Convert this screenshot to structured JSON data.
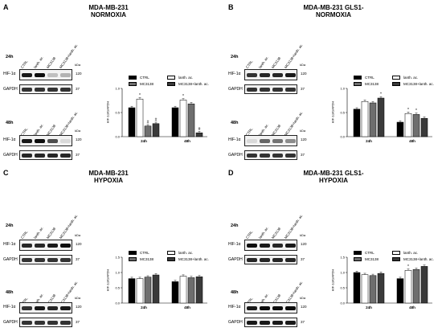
{
  "panels": [
    {
      "letter": "A",
      "title_line1": "MDA-MB-231",
      "title_line2": "NORMOXIA",
      "lanes": [
        "CTRL",
        "lanth. ac.",
        "MC3138",
        "MC3138+lanth. ac."
      ],
      "kda": "kDa",
      "time1": "24h",
      "time2": "48h",
      "hif_label": "HIF-1α",
      "gapdh_label": "GAPDH",
      "mw_hif": "120",
      "mw_gapdh": "37"
    },
    {
      "letter": "B",
      "title_line1": "MDA-MB-231 GLS1-",
      "title_line2": "NORMOXIA",
      "lanes": [
        "CTRL",
        "lanth. ac.",
        "MC3138",
        "MC3138+lanth. ac."
      ],
      "kda": "kDa",
      "time1": "24h",
      "time2": "48h",
      "hif_label": "HIF-1α",
      "gapdh_label": "GAPDH",
      "mw_hif": "120",
      "mw_gapdh": "37"
    },
    {
      "letter": "C",
      "title_line1": "MDA-MB-231",
      "title_line2": "HYPOXIA",
      "lanes": [
        "CTRL",
        "lanth. ac.",
        "MC3138",
        "MC3138+lanth. ac."
      ],
      "kda": "kDa",
      "time1": "24h",
      "time2": "48h",
      "hif_label": "HIF-1α",
      "gapdh_label": "GAPDH",
      "mw_hif": "120",
      "mw_gapdh": "37"
    },
    {
      "letter": "D",
      "title_line1": "MDA-MB-231 GLS1-",
      "title_line2": "HYPOXIA",
      "lanes": [
        "CTRL",
        "lanth. ac.",
        "MC3138",
        "MC3138+lanth. ac."
      ],
      "kda": "kDa",
      "time1": "24h",
      "time2": "48h",
      "hif_label": "HIF-1α",
      "gapdh_label": "GAPDH",
      "mw_hif": "120",
      "mw_gapdh": "37"
    }
  ],
  "chart_data": [
    {
      "type": "bar",
      "ylabel": "HIF-1α/GAPDH",
      "categories": [
        "24h",
        "48h"
      ],
      "ylim": [
        0,
        1.0
      ],
      "yticks": [
        "0.0",
        "0.5",
        "1.0"
      ],
      "series": [
        {
          "name": "CTRL",
          "values": [
            0.6,
            0.6
          ],
          "color": "#000000"
        },
        {
          "name": "lanth. ac.",
          "values": [
            0.78,
            0.76
          ],
          "color": "#ffffff"
        },
        {
          "name": "MC3138",
          "values": [
            0.22,
            0.68
          ],
          "color": "#6e6e6e"
        },
        {
          "name": "MC3138+lanth. ac.",
          "values": [
            0.27,
            0.08
          ],
          "color": "#3a3a3a"
        }
      ],
      "annotations": [
        {
          "category": "24h",
          "series": 1,
          "text": "*"
        },
        {
          "category": "24h",
          "series": 2,
          "text": "#"
        },
        {
          "category": "24h",
          "series": 3,
          "text": "#"
        },
        {
          "category": "48h",
          "series": 1,
          "text": "*"
        },
        {
          "category": "48h",
          "series": 3,
          "text": "#"
        }
      ]
    },
    {
      "type": "bar",
      "ylabel": "HIF-1α/GAPDH",
      "categories": [
        "24h",
        "48h"
      ],
      "ylim": [
        0,
        1.0
      ],
      "yticks": [
        "0.0",
        "0.5",
        "1.0"
      ],
      "series": [
        {
          "name": "CTRL",
          "values": [
            0.57,
            0.3
          ],
          "color": "#000000"
        },
        {
          "name": "lanth. ac.",
          "values": [
            0.73,
            0.48
          ],
          "color": "#ffffff"
        },
        {
          "name": "MC3138",
          "values": [
            0.7,
            0.46
          ],
          "color": "#6e6e6e"
        },
        {
          "name": "MC3138+lanth. ac.",
          "values": [
            0.8,
            0.38
          ],
          "color": "#3a3a3a"
        }
      ],
      "annotations": [
        {
          "category": "24h",
          "series": 3,
          "text": "*"
        },
        {
          "category": "48h",
          "series": 1,
          "text": "*"
        },
        {
          "category": "48h",
          "series": 2,
          "text": "*"
        }
      ]
    },
    {
      "type": "bar",
      "ylabel": "HIF-1α/GAPDH",
      "categories": [
        "24h",
        "48h"
      ],
      "ylim": [
        0,
        1.5
      ],
      "yticks": [
        "0.0",
        "0.5",
        "1.0",
        "1.5"
      ],
      "series": [
        {
          "name": "CTRL",
          "values": [
            0.8,
            0.7
          ],
          "color": "#000000"
        },
        {
          "name": "lanth. ac.",
          "values": [
            0.8,
            0.88
          ],
          "color": "#ffffff"
        },
        {
          "name": "MC3138",
          "values": [
            0.85,
            0.83
          ],
          "color": "#6e6e6e"
        },
        {
          "name": "MC3138+lanth. ac.",
          "values": [
            0.92,
            0.86
          ],
          "color": "#3a3a3a"
        }
      ],
      "annotations": []
    },
    {
      "type": "bar",
      "ylabel": "HIF-1α/GAPDH",
      "categories": [
        "24h",
        "48h"
      ],
      "ylim": [
        0,
        1.5
      ],
      "yticks": [
        "0.0",
        "0.5",
        "1.0",
        "1.5"
      ],
      "series": [
        {
          "name": "CTRL",
          "values": [
            1.0,
            0.8
          ],
          "color": "#000000"
        },
        {
          "name": "lanth. ac.",
          "values": [
            0.93,
            1.07
          ],
          "color": "#ffffff"
        },
        {
          "name": "MC3138",
          "values": [
            0.9,
            1.1
          ],
          "color": "#6e6e6e"
        },
        {
          "name": "MC3138+lanth. ac.",
          "values": [
            0.97,
            1.2
          ],
          "color": "#3a3a3a"
        }
      ],
      "annotations": [
        {
          "category": "48h",
          "series": 1,
          "text": "*"
        }
      ]
    }
  ]
}
